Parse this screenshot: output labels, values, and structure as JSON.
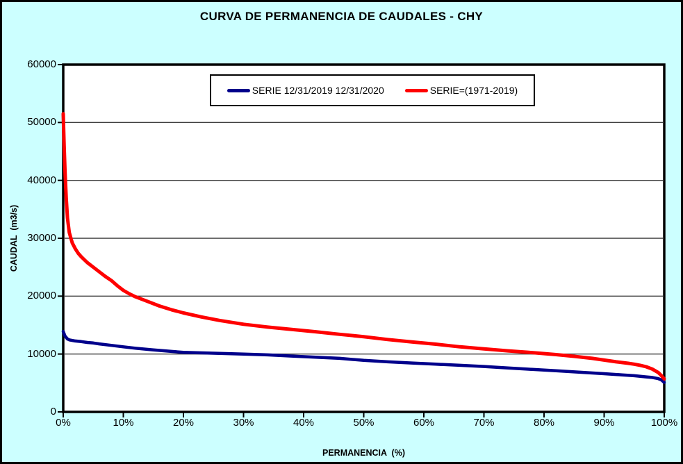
{
  "window": {
    "title": "CURVA DE PERMANENCIA DE CAUDALES - CHY"
  },
  "colors": {
    "background": "#CCFFFF",
    "plot_background": "#FFFFFF",
    "frame": "#000000",
    "gridline": "#3F3F3F",
    "tick": "#000000",
    "series_blue": "#00008B",
    "series_red": "#FF0000"
  },
  "chart_data": {
    "type": "line",
    "title": "CURVA DE PERMANENCIA DE CAUDALES - CHY",
    "xlabel": "PERMANENCIA  (%)",
    "ylabel": "CAUDAL  (m3/s)",
    "xlim": [
      0,
      100
    ],
    "ylim": [
      0,
      60000
    ],
    "grid": "horizontal",
    "legend_position": "top-center",
    "x_ticks": [
      {
        "value": 0,
        "label": "0%"
      },
      {
        "value": 10,
        "label": "10%"
      },
      {
        "value": 20,
        "label": "20%"
      },
      {
        "value": 30,
        "label": "30%"
      },
      {
        "value": 40,
        "label": "40%"
      },
      {
        "value": 50,
        "label": "50%"
      },
      {
        "value": 60,
        "label": "60%"
      },
      {
        "value": 70,
        "label": "70%"
      },
      {
        "value": 80,
        "label": "80%"
      },
      {
        "value": 90,
        "label": "90%"
      },
      {
        "value": 100,
        "label": "100%"
      }
    ],
    "y_ticks": [
      {
        "value": 0,
        "label": "0"
      },
      {
        "value": 10000,
        "label": "10000"
      },
      {
        "value": 20000,
        "label": "20000"
      },
      {
        "value": 30000,
        "label": "30000"
      },
      {
        "value": 40000,
        "label": "40000"
      },
      {
        "value": 50000,
        "label": "50000"
      },
      {
        "value": 60000,
        "label": "60000"
      }
    ],
    "series": [
      {
        "name": "SERIE 12/31/2019 12/31/2020",
        "color": "#00008B",
        "points": [
          [
            0,
            13900
          ],
          [
            0.3,
            13100
          ],
          [
            0.7,
            12600
          ],
          [
            1,
            12450
          ],
          [
            2,
            12250
          ],
          [
            3,
            12150
          ],
          [
            4,
            12000
          ],
          [
            5,
            11900
          ],
          [
            6,
            11750
          ],
          [
            8,
            11500
          ],
          [
            10,
            11250
          ],
          [
            12,
            11000
          ],
          [
            15,
            10700
          ],
          [
            18,
            10450
          ],
          [
            20,
            10300
          ],
          [
            23,
            10200
          ],
          [
            26,
            10100
          ],
          [
            30,
            10000
          ],
          [
            34,
            9850
          ],
          [
            38,
            9650
          ],
          [
            42,
            9450
          ],
          [
            46,
            9250
          ],
          [
            50,
            8900
          ],
          [
            54,
            8650
          ],
          [
            58,
            8450
          ],
          [
            62,
            8250
          ],
          [
            66,
            8050
          ],
          [
            70,
            7850
          ],
          [
            74,
            7600
          ],
          [
            78,
            7350
          ],
          [
            82,
            7100
          ],
          [
            86,
            6850
          ],
          [
            90,
            6600
          ],
          [
            93,
            6400
          ],
          [
            95,
            6250
          ],
          [
            97,
            6050
          ],
          [
            98,
            5950
          ],
          [
            99,
            5750
          ],
          [
            99.5,
            5550
          ],
          [
            100,
            5100
          ]
        ]
      },
      {
        "name": "SERIE=(1971-2019)",
        "color": "#FF0000",
        "points": [
          [
            0,
            51500
          ],
          [
            0.15,
            46000
          ],
          [
            0.3,
            41500
          ],
          [
            0.5,
            37000
          ],
          [
            0.7,
            33500
          ],
          [
            1,
            31000
          ],
          [
            1.5,
            29200
          ],
          [
            2,
            28200
          ],
          [
            2.5,
            27400
          ],
          [
            3,
            26800
          ],
          [
            4,
            25800
          ],
          [
            5,
            25000
          ],
          [
            6,
            24200
          ],
          [
            7,
            23400
          ],
          [
            8,
            22700
          ],
          [
            9,
            21800
          ],
          [
            10,
            21000
          ],
          [
            11,
            20400
          ],
          [
            12,
            19900
          ],
          [
            14,
            19100
          ],
          [
            16,
            18300
          ],
          [
            18,
            17650
          ],
          [
            20,
            17100
          ],
          [
            23,
            16400
          ],
          [
            26,
            15800
          ],
          [
            30,
            15150
          ],
          [
            34,
            14650
          ],
          [
            38,
            14250
          ],
          [
            42,
            13850
          ],
          [
            46,
            13400
          ],
          [
            50,
            13000
          ],
          [
            54,
            12500
          ],
          [
            58,
            12100
          ],
          [
            62,
            11700
          ],
          [
            66,
            11250
          ],
          [
            70,
            10900
          ],
          [
            74,
            10550
          ],
          [
            78,
            10250
          ],
          [
            82,
            9900
          ],
          [
            85,
            9600
          ],
          [
            88,
            9250
          ],
          [
            90,
            8950
          ],
          [
            92,
            8650
          ],
          [
            94,
            8400
          ],
          [
            95,
            8250
          ],
          [
            96,
            8050
          ],
          [
            97,
            7800
          ],
          [
            98,
            7400
          ],
          [
            99,
            6800
          ],
          [
            99.5,
            6300
          ],
          [
            100,
            5700
          ]
        ]
      }
    ]
  }
}
